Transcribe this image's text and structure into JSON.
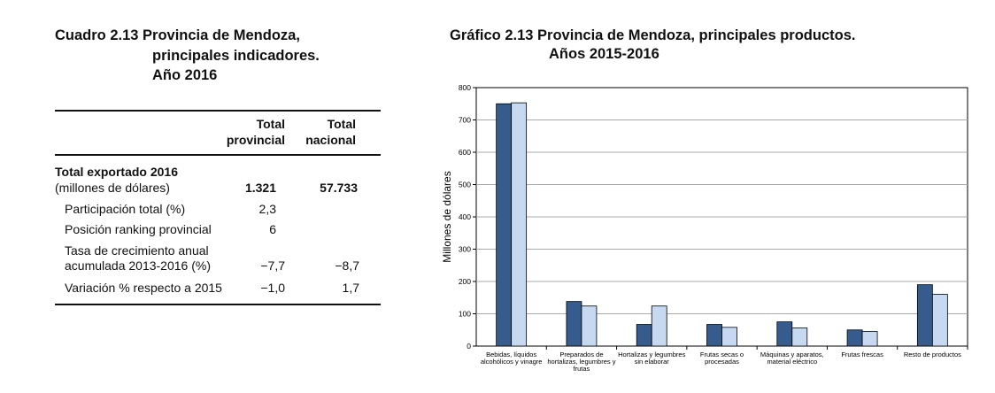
{
  "table": {
    "title_line1": "Cuadro 2.13 Provincia de Mendoza,",
    "title_line2": "principales indicadores.",
    "title_line3": "Año 2016",
    "col1_line1": "Total",
    "col1_line2": "provincial",
    "col2_line1": "Total",
    "col2_line2": "nacional",
    "rows": [
      {
        "label": "Total exportado 2016",
        "label2": "(millones de dólares)",
        "provincial": "1.321",
        "nacional": "57.733"
      },
      {
        "label": "Participación total (%)",
        "provincial": "2,3",
        "nacional": ""
      },
      {
        "label": "Posición ranking provincial",
        "provincial": "6",
        "nacional": ""
      },
      {
        "label": "Tasa de crecimiento anual",
        "label2": "acumulada 2013-2016 (%)",
        "provincial": "−7,7",
        "nacional": "−8,7"
      },
      {
        "label": "Variación % respecto a 2015",
        "provincial": "−1,0",
        "nacional": "1,7"
      }
    ]
  },
  "chart_data": {
    "type": "bar",
    "title_line1": "Gráfico 2.13 Provincia de Mendoza, principales productos.",
    "title_line2": "Años 2015-2016",
    "ylabel": "Millones de dólares",
    "ylim": [
      0,
      800
    ],
    "yticks": [
      0,
      100,
      200,
      300,
      400,
      500,
      600,
      700,
      800
    ],
    "grid": true,
    "categories": [
      [
        "Bebidas, líquidos",
        "alcohólicos y vinagre"
      ],
      [
        "Preparados de",
        "hortalizas, legumbres y",
        "frutas"
      ],
      [
        "Hortalizas y legumbres",
        "sin elaborar"
      ],
      [
        "Frutas secas o",
        "procesadas"
      ],
      [
        "Máquinas y aparatos,",
        "material eléctrico"
      ],
      [
        "Frutas frescas"
      ],
      [
        "Resto de productos"
      ]
    ],
    "series": [
      {
        "values": [
          750,
          138,
          67,
          67,
          75,
          50,
          190
        ],
        "color": "#355c8c"
      },
      {
        "values": [
          753,
          124,
          124,
          58,
          56,
          45,
          160
        ],
        "color": "#c6d9f0"
      }
    ]
  }
}
